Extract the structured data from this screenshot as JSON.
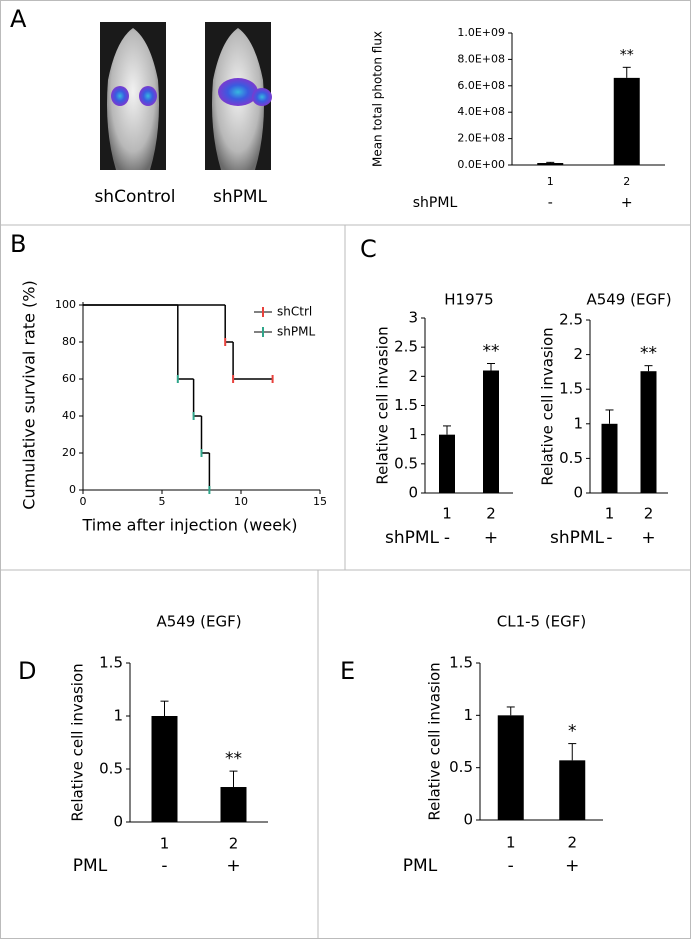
{
  "panel_labels": [
    "A",
    "B",
    "C",
    "D",
    "E"
  ],
  "image_labels": [
    "shControl",
    "shPML"
  ],
  "chart_data": [
    {
      "type": "bar",
      "ylabel": "Mean total photon flux",
      "categories": [
        "1",
        "2"
      ],
      "values": [
        15000000,
        660000000
      ],
      "errors": [
        5000000,
        80000000
      ],
      "value_annotations": [
        null,
        "**"
      ],
      "group_label": "shPML",
      "group_values": [
        "-",
        "+"
      ],
      "color": "#000000",
      "ylim": [
        0,
        1000000000
      ],
      "yticks": [
        {
          "value": 0,
          "label": "0.0E+00"
        },
        {
          "value": 200000000,
          "label": "2.0E+08"
        },
        {
          "value": 400000000,
          "label": "4.0E+08"
        },
        {
          "value": 600000000,
          "label": "6.0E+08"
        },
        {
          "value": 800000000,
          "label": "8.0E+08"
        },
        {
          "value": 1000000000,
          "label": "1.0E+09"
        }
      ]
    },
    {
      "type": "line",
      "step": true,
      "xlabel": "Time after injection (week)",
      "ylabel": "Cumulative survival rate (%)",
      "xlim": [
        0,
        15
      ],
      "xticks": [
        0,
        5,
        10,
        15
      ],
      "ylim": [
        0,
        100
      ],
      "yticks": [
        0,
        20,
        40,
        60,
        80,
        100
      ],
      "line_color": "#000000",
      "legend": "upper right",
      "series": [
        {
          "name": "shCtrl",
          "color": "#e8413c",
          "x": [
            0,
            9,
            9.5,
            12
          ],
          "values": [
            100,
            80,
            60,
            60
          ]
        },
        {
          "name": "shPML",
          "color": "#2fa58a",
          "x": [
            0,
            6,
            7,
            7.5,
            8
          ],
          "values": [
            100,
            60,
            40,
            20,
            0
          ]
        }
      ]
    },
    {
      "type": "bar",
      "title": "H1975",
      "ylabel": "Relative cell invasion",
      "categories": [
        "1",
        "2"
      ],
      "values": [
        1,
        2.1
      ],
      "errors": [
        0.15,
        0.12
      ],
      "value_annotations": [
        null,
        "**"
      ],
      "group_label": "shPML",
      "group_values": [
        "-",
        "+"
      ],
      "color": "#000000",
      "ylim": [
        0,
        3
      ],
      "yticks": [
        0,
        0.5,
        1,
        1.5,
        2,
        2.5,
        3
      ]
    },
    {
      "type": "bar",
      "title": "A549 (EGF)",
      "ylabel": "Relative cell invasion",
      "categories": [
        "1",
        "2"
      ],
      "values": [
        1,
        1.76
      ],
      "errors": [
        0.2,
        0.08
      ],
      "value_annotations": [
        null,
        "**"
      ],
      "group_label": "shPML",
      "group_values": [
        "-",
        "+"
      ],
      "color": "#000000",
      "ylim": [
        0,
        2.5
      ],
      "yticks": [
        0,
        0.5,
        1,
        1.5,
        2,
        2.5
      ]
    },
    {
      "type": "bar",
      "title": "A549 (EGF)",
      "ylabel": "Relative cell invasion",
      "categories": [
        "1",
        "2"
      ],
      "values": [
        1,
        0.33
      ],
      "errors": [
        0.14,
        0.15
      ],
      "value_annotations": [
        null,
        "**"
      ],
      "group_label": "PML",
      "group_values": [
        "-",
        "+"
      ],
      "color": "#000000",
      "ylim": [
        0,
        1.5
      ],
      "yticks": [
        0,
        0.5,
        1,
        1.5
      ]
    },
    {
      "type": "bar",
      "title": "CL1-5 (EGF)",
      "ylabel": "Relative cell invasion",
      "categories": [
        "1",
        "2"
      ],
      "values": [
        1,
        0.57
      ],
      "errors": [
        0.08,
        0.16
      ],
      "value_annotations": [
        null,
        "*"
      ],
      "group_label": "PML",
      "group_values": [
        "-",
        "+"
      ],
      "color": "#000000",
      "ylim": [
        0,
        1.5
      ],
      "yticks": [
        0,
        0.5,
        1,
        1.5
      ]
    }
  ]
}
